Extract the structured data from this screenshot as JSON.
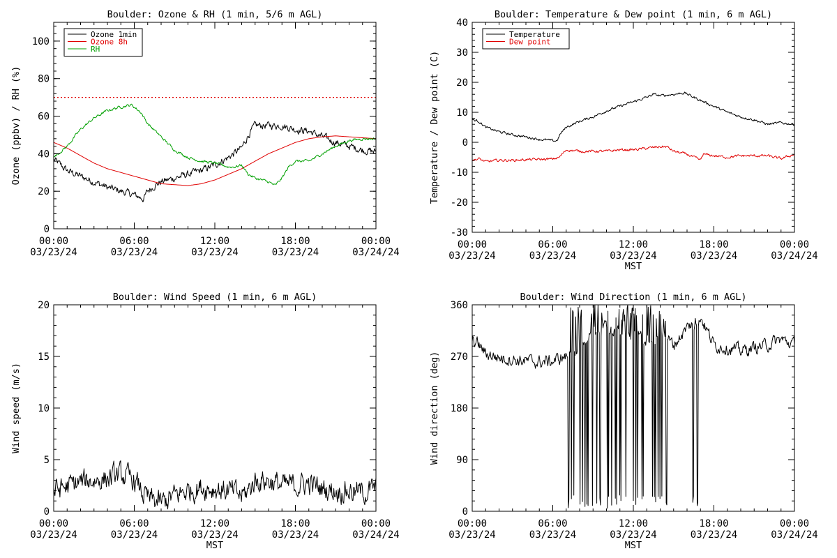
{
  "chart_data": [
    {
      "id": "ozone",
      "type": "line",
      "title": "Boulder: Ozone & RH (1 min, 5/6 m AGL)",
      "xlabel": "",
      "ylabel": "Ozone (ppbv) / RH (%)",
      "xlim": [
        0,
        24
      ],
      "ylim": [
        0,
        110
      ],
      "yticks": [
        0,
        20,
        40,
        60,
        80,
        100
      ],
      "x_ticks": [
        {
          "value": 0,
          "time": "00:00",
          "date": "03/23/24"
        },
        {
          "value": 6,
          "time": "06:00",
          "date": "03/23/24"
        },
        {
          "value": 12,
          "time": "12:00",
          "date": "03/23/24"
        },
        {
          "value": 18,
          "time": "18:00",
          "date": "03/23/24"
        },
        {
          "value": 24,
          "time": "00:00",
          "date": "03/24/24"
        }
      ],
      "legend_position": "top-left",
      "reference_line": {
        "y": 70,
        "color": "#e00000",
        "style": "dotted"
      },
      "series": [
        {
          "name": "Ozone 1min",
          "color": "#000000",
          "noise": 1.6,
          "points": [
            [
              0,
              37
            ],
            [
              0.5,
              34
            ],
            [
              1,
              31
            ],
            [
              2,
              28
            ],
            [
              3,
              25
            ],
            [
              4,
              22
            ],
            [
              5,
              20
            ],
            [
              6,
              18
            ],
            [
              6.7,
              16
            ],
            [
              7,
              20
            ],
            [
              7.5,
              23
            ],
            [
              8,
              25
            ],
            [
              9,
              27
            ],
            [
              10,
              29
            ],
            [
              11,
              31
            ],
            [
              12,
              34
            ],
            [
              13,
              38
            ],
            [
              14,
              43
            ],
            [
              14.5,
              50
            ],
            [
              15,
              55
            ],
            [
              16,
              55
            ],
            [
              17,
              55
            ],
            [
              18,
              53
            ],
            [
              19,
              52
            ],
            [
              20,
              49
            ],
            [
              21,
              46
            ],
            [
              22,
              44
            ],
            [
              23,
              42
            ],
            [
              24,
              41
            ]
          ]
        },
        {
          "name": "Ozone 8h",
          "color": "#e00000",
          "noise": 0,
          "points": [
            [
              0,
              46
            ],
            [
              1,
              43
            ],
            [
              2,
              39
            ],
            [
              3,
              35
            ],
            [
              4,
              32
            ],
            [
              5,
              30
            ],
            [
              6,
              28
            ],
            [
              7,
              26
            ],
            [
              8,
              24
            ],
            [
              9,
              23.5
            ],
            [
              10,
              23
            ],
            [
              11,
              24
            ],
            [
              12,
              26
            ],
            [
              13,
              29
            ],
            [
              14,
              32
            ],
            [
              15,
              36
            ],
            [
              16,
              40
            ],
            [
              17,
              43
            ],
            [
              18,
              46
            ],
            [
              19,
              48
            ],
            [
              20,
              49
            ],
            [
              21,
              49.5
            ],
            [
              22,
              49
            ],
            [
              23,
              48.5
            ],
            [
              24,
              48
            ]
          ]
        },
        {
          "name": "RH",
          "color": "#00a000",
          "noise": 0.6,
          "points": [
            [
              0,
              38
            ],
            [
              1,
              44
            ],
            [
              2,
              53
            ],
            [
              3,
              59
            ],
            [
              4,
              63
            ],
            [
              5,
              65
            ],
            [
              5.8,
              66
            ],
            [
              6.5,
              62
            ],
            [
              7,
              56
            ],
            [
              8,
              49
            ],
            [
              9,
              42
            ],
            [
              10,
              38
            ],
            [
              11,
              36
            ],
            [
              12,
              35
            ],
            [
              13,
              33
            ],
            [
              13.5,
              33
            ],
            [
              14,
              34
            ],
            [
              14.5,
              29
            ],
            [
              15,
              27
            ],
            [
              16,
              25
            ],
            [
              16.5,
              23
            ],
            [
              17,
              27
            ],
            [
              17.5,
              33
            ],
            [
              18,
              36
            ],
            [
              19,
              36
            ],
            [
              20,
              40
            ],
            [
              21,
              44
            ],
            [
              22,
              47
            ],
            [
              23,
              48
            ],
            [
              24,
              48
            ]
          ]
        }
      ]
    },
    {
      "id": "temp",
      "type": "line",
      "title": "Boulder: Temperature & Dew point (1 min, 6 m AGL)",
      "xlabel": "MST",
      "ylabel": "Temperature / Dew point (C)",
      "xlim": [
        0,
        24
      ],
      "ylim": [
        -30,
        40
      ],
      "yticks": [
        -30,
        -20,
        -10,
        0,
        10,
        20,
        30,
        40
      ],
      "x_ticks": [
        {
          "value": 0,
          "time": "00:00",
          "date": "03/23/24"
        },
        {
          "value": 6,
          "time": "06:00",
          "date": "03/23/24"
        },
        {
          "value": 12,
          "time": "12:00",
          "date": "03/23/24"
        },
        {
          "value": 18,
          "time": "18:00",
          "date": "03/23/24"
        },
        {
          "value": 24,
          "time": "00:00",
          "date": "03/24/24"
        }
      ],
      "legend_position": "top-left",
      "series": [
        {
          "name": "Temperature",
          "color": "#000000",
          "noise": 0.35,
          "points": [
            [
              0,
              7.5
            ],
            [
              0.5,
              7
            ],
            [
              1,
              5
            ],
            [
              2,
              3.5
            ],
            [
              3,
              2.5
            ],
            [
              4,
              1.8
            ],
            [
              5,
              1
            ],
            [
              6,
              0.5
            ],
            [
              6.3,
              0.5
            ],
            [
              6.6,
              3
            ],
            [
              7,
              5
            ],
            [
              8,
              7
            ],
            [
              9,
              8.5
            ],
            [
              10,
              10.5
            ],
            [
              11,
              12
            ],
            [
              12,
              13.5
            ],
            [
              13,
              15
            ],
            [
              13.5,
              16
            ],
            [
              14,
              15.5
            ],
            [
              15,
              16
            ],
            [
              15.8,
              16.5
            ],
            [
              16.5,
              15
            ],
            [
              17,
              14
            ],
            [
              18,
              12
            ],
            [
              19,
              10
            ],
            [
              20,
              8.5
            ],
            [
              21,
              7.5
            ],
            [
              22,
              6
            ],
            [
              23,
              6.5
            ],
            [
              24,
              6
            ]
          ]
        },
        {
          "name": "Dew point",
          "color": "#e00000",
          "noise": 0.35,
          "points": [
            [
              0,
              -6
            ],
            [
              0.5,
              -5.5
            ],
            [
              1,
              -6.5
            ],
            [
              2,
              -6
            ],
            [
              3,
              -6
            ],
            [
              4,
              -5.8
            ],
            [
              5,
              -5.7
            ],
            [
              6,
              -5.6
            ],
            [
              6.5,
              -5
            ],
            [
              7,
              -2.5
            ],
            [
              8,
              -3
            ],
            [
              9,
              -3
            ],
            [
              10,
              -3
            ],
            [
              11,
              -2.5
            ],
            [
              12,
              -2.5
            ],
            [
              13,
              -2
            ],
            [
              14,
              -1.5
            ],
            [
              14.5,
              -1.5
            ],
            [
              15,
              -3
            ],
            [
              16,
              -4
            ],
            [
              17,
              -6
            ],
            [
              17.2,
              -4
            ],
            [
              18,
              -4.5
            ],
            [
              19,
              -5
            ],
            [
              20,
              -4.5
            ],
            [
              21,
              -4.5
            ],
            [
              22,
              -4.5
            ],
            [
              23,
              -5.5
            ],
            [
              24,
              -4
            ]
          ]
        }
      ]
    },
    {
      "id": "wspd",
      "type": "line",
      "title": "Boulder: Wind Speed (1 min, 6 m AGL)",
      "xlabel": "MST",
      "ylabel": "Wind speed (m/s)",
      "xlim": [
        0,
        24
      ],
      "ylim": [
        0,
        20
      ],
      "yticks": [
        0,
        5,
        10,
        15,
        20
      ],
      "x_ticks": [
        {
          "value": 0,
          "time": "00:00",
          "date": "03/23/24"
        },
        {
          "value": 6,
          "time": "06:00",
          "date": "03/23/24"
        },
        {
          "value": 12,
          "time": "12:00",
          "date": "03/23/24"
        },
        {
          "value": 18,
          "time": "18:00",
          "date": "03/23/24"
        },
        {
          "value": 24,
          "time": "00:00",
          "date": "03/24/24"
        }
      ],
      "series": [
        {
          "name": "",
          "color": "#000000",
          "noise": 0.9,
          "points": [
            [
              0,
              2
            ],
            [
              1,
              2.4
            ],
            [
              2,
              2.8
            ],
            [
              3,
              3
            ],
            [
              4,
              3.2
            ],
            [
              5,
              3.5
            ],
            [
              6,
              3
            ],
            [
              6.5,
              2
            ],
            [
              7,
              1.2
            ],
            [
              8,
              0.8
            ],
            [
              9,
              1.5
            ],
            [
              10,
              2
            ],
            [
              11,
              2.3
            ],
            [
              12,
              2.2
            ],
            [
              13,
              2
            ],
            [
              14,
              1.5
            ],
            [
              14.5,
              2
            ],
            [
              15,
              3
            ],
            [
              16,
              3
            ],
            [
              17,
              2.5
            ],
            [
              18,
              2.5
            ],
            [
              19,
              2.7
            ],
            [
              20,
              2.2
            ],
            [
              21,
              2
            ],
            [
              22,
              2
            ],
            [
              23,
              1.8
            ],
            [
              24,
              2.2
            ]
          ]
        }
      ]
    },
    {
      "id": "wdir",
      "type": "line",
      "title": "Boulder: Wind Direction (1 min, 6 m AGL)",
      "xlabel": "MST",
      "ylabel": "Wind direction (deg)",
      "xlim": [
        0,
        24
      ],
      "ylim": [
        0,
        360
      ],
      "yticks": [
        0,
        90,
        180,
        270,
        360
      ],
      "x_ticks": [
        {
          "value": 0,
          "time": "00:00",
          "date": "03/23/24"
        },
        {
          "value": 6,
          "time": "06:00",
          "date": "03/23/24"
        },
        {
          "value": 12,
          "time": "12:00",
          "date": "03/23/24"
        },
        {
          "value": 18,
          "time": "18:00",
          "date": "03/23/24"
        },
        {
          "value": 24,
          "time": "00:00",
          "date": "03/24/24"
        }
      ],
      "series": [
        {
          "name": "",
          "color": "#000000",
          "noise": 9,
          "points": [
            [
              0,
              300
            ],
            [
              0.5,
              290
            ],
            [
              1,
              275
            ],
            [
              2,
              268
            ],
            [
              3,
              265
            ],
            [
              4,
              262
            ],
            [
              5,
              260
            ],
            [
              6,
              262
            ],
            [
              7,
              270
            ],
            [
              8,
              285
            ],
            [
              9,
              310
            ],
            [
              10,
              320
            ],
            [
              11,
              310
            ],
            [
              12,
              305
            ],
            [
              13,
              300
            ],
            [
              14,
              310
            ],
            [
              15,
              290
            ],
            [
              16,
              320
            ],
            [
              17,
              340
            ],
            [
              18,
              290
            ],
            [
              19,
              285
            ],
            [
              20,
              280
            ],
            [
              21,
              285
            ],
            [
              22,
              290
            ],
            [
              23,
              300
            ],
            [
              24,
              290
            ]
          ]
        }
      ],
      "wrap_intervals": [
        [
          7.1,
          14.5
        ],
        [
          16.2,
          16.9
        ]
      ]
    }
  ]
}
